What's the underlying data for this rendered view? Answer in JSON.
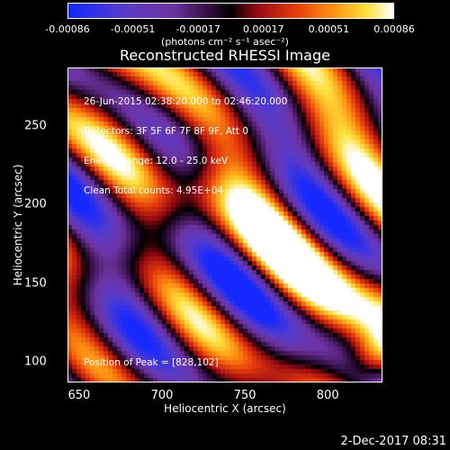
{
  "colorbar": {
    "ticks": [
      "-0.00086",
      "-0.00051",
      "-0.00017",
      "0.00017",
      "0.00051",
      "0.00086"
    ],
    "unit": "(photons cm⁻² s⁻¹ asec⁻²)"
  },
  "chart_data": {
    "type": "heatmap",
    "title": "Reconstructed RHESSI Image",
    "xlabel": "Heliocentric X (arcsec)",
    "ylabel": "Heliocentric Y (arcsec)",
    "xlim": [
      643,
      833
    ],
    "ylim": [
      87,
      287
    ],
    "xticks": [
      "650",
      "700",
      "750",
      "800"
    ],
    "yticks": [
      "100",
      "150",
      "200",
      "250"
    ],
    "xtick_values": [
      650,
      700,
      750,
      800
    ],
    "ytick_values": [
      100,
      150,
      200,
      250
    ],
    "value_range": [
      -0.00086,
      0.00086
    ],
    "peak": [
      828,
      102
    ],
    "annotations": [
      "26-Jun-2015 02:38:20.000 to 02:46:20.000",
      "Detectors: 3F 5F 6F 7F 8F 9F, Att 0",
      "Energy Range: 12.0 - 25.0 keV",
      "Clean     Total counts: 4.95E+04"
    ],
    "peak_label": "Position of Peak = [828,102]"
  },
  "timestamp": "2-Dec-2017 08:31"
}
